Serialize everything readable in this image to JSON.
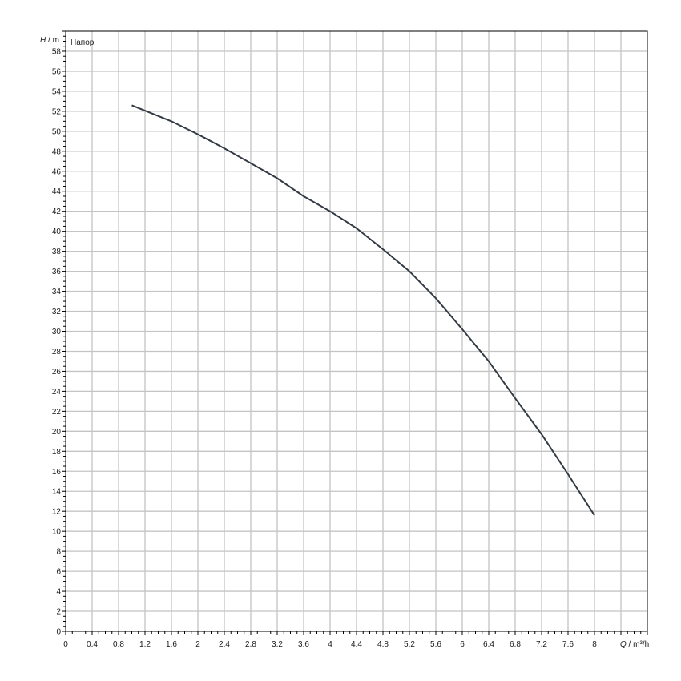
{
  "chart_data": {
    "type": "line",
    "title": "",
    "legend_label": "Напор",
    "ylabel_symbol": "H",
    "ylabel_unit": "m",
    "xlabel_symbol": "Q",
    "xlabel_unit": "m³/h",
    "xlim": [
      0,
      8.8
    ],
    "ylim": [
      0,
      60
    ],
    "x_ticks": [
      0,
      0.4,
      0.8,
      1.2,
      1.6,
      2,
      2.4,
      2.8,
      3.2,
      3.6,
      4,
      4.4,
      4.8,
      5.2,
      5.6,
      6,
      6.4,
      6.8,
      7.2,
      7.6,
      8
    ],
    "y_ticks": [
      0,
      2,
      4,
      6,
      8,
      10,
      12,
      14,
      16,
      18,
      20,
      22,
      24,
      26,
      28,
      30,
      32,
      34,
      36,
      38,
      40,
      42,
      44,
      46,
      48,
      50,
      52,
      54,
      56,
      58
    ],
    "grid": true,
    "series": [
      {
        "color": "#333a44",
        "x": [
          1.0,
          1.6,
          2.0,
          2.4,
          2.8,
          3.2,
          3.6,
          4.0,
          4.4,
          4.8,
          5.2,
          5.6,
          6.0,
          6.4,
          6.8,
          7.2,
          7.6,
          8.0
        ],
        "y": [
          52.6,
          51.0,
          49.7,
          48.3,
          46.8,
          45.3,
          43.5,
          42.0,
          40.3,
          38.2,
          36.0,
          33.3,
          30.2,
          27.0,
          23.3,
          19.7,
          15.7,
          11.6
        ]
      }
    ]
  }
}
